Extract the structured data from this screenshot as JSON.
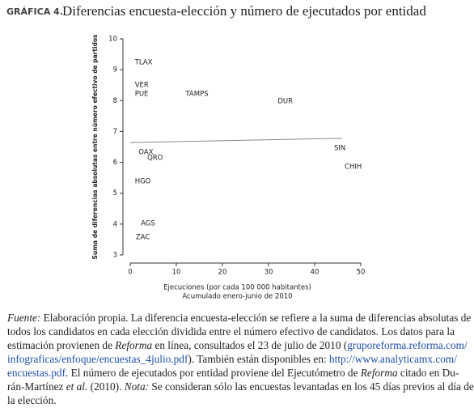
{
  "chart_data": {
    "type": "scatter",
    "title_prefix": "GRÁFICA 4.",
    "title": "Diferencias encuesta-elección y número de ejecutados por entidad",
    "y_label": "Suma de diferencias absolutas entre número efectivo de partidos",
    "x_label": [
      "Ejecuciones (por cada 100 000 habitantes)",
      "Acumulado enero-junio de 2010"
    ],
    "labels": [
      "TLAX",
      "VER",
      "PUE",
      "TAMPS",
      "DUR",
      "SIN",
      "CHIH",
      "OAX",
      "QRO",
      "HGO",
      "AGS",
      "ZAC"
    ],
    "x": [
      1,
      1,
      1,
      12,
      32,
      44.2,
      46.5,
      1.8,
      3.7,
      1,
      2.3,
      1.2
    ],
    "y": [
      9.24,
      8.5,
      8.22,
      8.22,
      7.98,
      6.46,
      5.86,
      6.33,
      6.15,
      5.39,
      4.02,
      3.58
    ],
    "trend_line": {
      "x": [
        0,
        46
      ],
      "y": [
        6.64,
        6.78
      ],
      "color": "#888888"
    },
    "color": "#222222",
    "xlim": [
      0,
      50
    ],
    "xticks": [
      0,
      10,
      20,
      30,
      40,
      50
    ],
    "ylim": [
      3,
      10
    ],
    "yticks": [
      3,
      4,
      5,
      6,
      7,
      8,
      9,
      10
    ]
  },
  "caption": {
    "lines": [
      [
        {
          "text": "Fuente:",
          "style": "italic"
        },
        {
          "text": " Elaboración propia. La diferencia encuesta-elección se refiere a la suma de diferencias absolutas de"
        }
      ],
      [
        {
          "text": "todos los candidatos en cada elección dividida entre el número efectivo de candidatos. Los datos para la"
        }
      ],
      [
        {
          "text": "estimación provienen de "
        },
        {
          "text": "Reforma",
          "style": "italic"
        },
        {
          "text": " en línea, consultados el 23 de julio de 2010 ("
        },
        {
          "text": "gruporeforma.reforma.com/",
          "style": "link"
        }
      ],
      [
        {
          "text": "infograficas/enfoque/encuestas_4julio.pdf",
          "style": "link"
        },
        {
          "text": "). También están disponibles en: "
        },
        {
          "text": "http://www.analyticamx.com/",
          "style": "link"
        }
      ],
      [
        {
          "text": "encuestas.pdf",
          "style": "link"
        },
        {
          "text": ". El número de ejecutados por entidad proviene del Ejecutómetro de "
        },
        {
          "text": "Reforma",
          "style": "italic"
        },
        {
          "text": " citado en Du-"
        }
      ],
      [
        {
          "text": "rán-Martínez "
        },
        {
          "text": "et al.",
          "style": "italic"
        },
        {
          "text": " (2010). "
        },
        {
          "text": "Nota:",
          "style": "italic"
        },
        {
          "text": " Se consideran sólo las encuestas levantadas en los 45 días previos al día de"
        }
      ],
      [
        {
          "text": "la elección."
        }
      ]
    ]
  }
}
